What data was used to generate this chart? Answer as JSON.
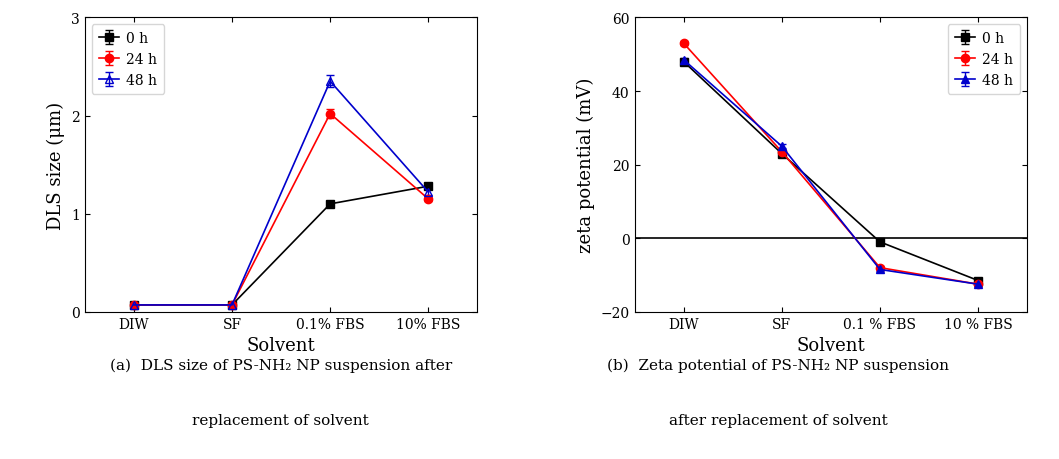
{
  "left_plot": {
    "x_labels": [
      "DIW",
      "SF",
      "0.1% FBS",
      "10% FBS"
    ],
    "x_positions": [
      0,
      1,
      2,
      3
    ],
    "series_order": [
      "0 h",
      "24 h",
      "48 h"
    ],
    "series": {
      "0 h": {
        "values": [
          0.07,
          0.07,
          1.1,
          1.28
        ],
        "yerr": [
          0.01,
          0.01,
          0.03,
          0.03
        ],
        "color": "#000000",
        "marker": "s",
        "marker_fill": "#000000"
      },
      "24 h": {
        "values": [
          0.07,
          0.07,
          2.02,
          1.15
        ],
        "yerr": [
          0.01,
          0.01,
          0.05,
          0.02
        ],
        "color": "#ff0000",
        "marker": "o",
        "marker_fill": "#ff0000"
      },
      "48 h": {
        "values": [
          0.07,
          0.07,
          2.35,
          1.22
        ],
        "yerr": [
          0.01,
          0.01,
          0.06,
          0.03
        ],
        "color": "#0000cc",
        "marker": "^",
        "marker_fill": "none"
      }
    },
    "ylabel": "DLS size (μm)",
    "xlabel": "Solvent",
    "ylim": [
      0,
      3
    ],
    "yticks": [
      0,
      1,
      2,
      3
    ]
  },
  "right_plot": {
    "x_labels": [
      "DIW",
      "SF",
      "0.1 % FBS",
      "10 % FBS"
    ],
    "x_positions": [
      0,
      1,
      2,
      3
    ],
    "series_order": [
      "0 h",
      "24 h",
      "48 h"
    ],
    "series": {
      "0 h": {
        "values": [
          48.0,
          23.0,
          -1.0,
          -11.5
        ],
        "yerr": [
          0.5,
          0.5,
          0.5,
          0.5
        ],
        "color": "#000000",
        "marker": "s",
        "marker_fill": "#000000"
      },
      "24 h": {
        "values": [
          53.0,
          23.5,
          -8.0,
          -12.5
        ],
        "yerr": [
          0.5,
          0.5,
          0.5,
          0.5
        ],
        "color": "#ff0000",
        "marker": "o",
        "marker_fill": "#ff0000"
      },
      "48 h": {
        "values": [
          48.5,
          25.0,
          -8.5,
          -12.5
        ],
        "yerr": [
          0.5,
          0.5,
          0.5,
          0.5
        ],
        "color": "#0000cc",
        "marker": "^",
        "marker_fill": "#0000cc"
      }
    },
    "ylabel": "zeta potential (mV)",
    "xlabel": "Solvent",
    "ylim": [
      -20,
      60
    ],
    "yticks": [
      -20,
      0,
      20,
      40,
      60
    ],
    "hline_y": 0
  },
  "caption_left_line1": "(a)  DLS size of PS-NH₂ NP suspension after",
  "caption_left_line2": "replacement of solvent",
  "caption_right_line1": "(b)  Zeta potential of PS-NH₂ NP suspension",
  "caption_right_line2": "after replacement of solvent",
  "tick_fontsize": 10,
  "label_fontsize": 13,
  "legend_fontsize": 10,
  "caption_fontsize": 11
}
